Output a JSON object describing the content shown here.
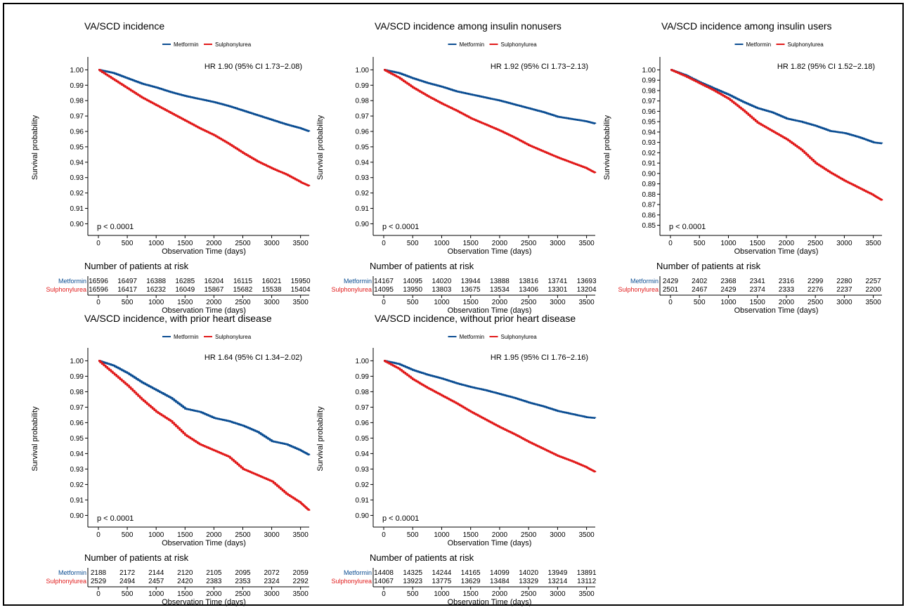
{
  "legend": {
    "metformin": "Metformin",
    "sulphonylurea": "Sulphonylurea"
  },
  "colors": {
    "metformin": "#0b4d92",
    "sulphonylurea": "#e11a1a"
  },
  "labels": {
    "ylabel": "Survival probability",
    "xlabel": "Observation Time (days)",
    "risk_title": "Number of patients at risk"
  },
  "chart_data": [
    {
      "type": "line",
      "title": "VA/SCD incidence",
      "hr": "HR 1.90 (95% CI 1.73−2.08)",
      "pvalue": "p < 0.0001",
      "xlabel": "Observation Time (days)",
      "ylabel": "Survival probability",
      "xlim": [
        0,
        3650
      ],
      "ylim": [
        0.897,
        1.002
      ],
      "yticks": [
        "0.90",
        "0.91",
        "0.92",
        "0.93",
        "0.94",
        "0.95",
        "0.96",
        "0.97",
        "0.98",
        "0.99",
        "1.00"
      ],
      "xticks": [
        "0",
        "500",
        "1000",
        "1500",
        "2000",
        "2500",
        "3000",
        "3500"
      ],
      "series": [
        {
          "name": "Metformin",
          "x": [
            0,
            250,
            500,
            750,
            1000,
            1250,
            1500,
            1750,
            2000,
            2250,
            2500,
            2750,
            3000,
            3250,
            3500,
            3650
          ],
          "y": [
            1.0,
            0.998,
            0.9945,
            0.991,
            0.9885,
            0.9855,
            0.983,
            0.981,
            0.979,
            0.9765,
            0.9735,
            0.9705,
            0.9675,
            0.9645,
            0.962,
            0.96
          ]
        },
        {
          "name": "Sulphonylurea",
          "x": [
            0,
            250,
            500,
            750,
            1000,
            1250,
            1500,
            1750,
            2000,
            2250,
            2500,
            2750,
            3000,
            3250,
            3500,
            3650
          ],
          "y": [
            1.0,
            0.994,
            0.988,
            0.982,
            0.977,
            0.972,
            0.967,
            0.962,
            0.9575,
            0.952,
            0.946,
            0.9405,
            0.936,
            0.932,
            0.927,
            0.9245
          ]
        }
      ],
      "risk_table": {
        "x": [
          0,
          500,
          1000,
          1500,
          2000,
          2500,
          3000,
          3500
        ],
        "Metformin": [
          "16596",
          "16497",
          "16388",
          "16285",
          "16204",
          "16115",
          "16021",
          "15950"
        ],
        "Sulphonylurea": [
          "16596",
          "16417",
          "16232",
          "16049",
          "15867",
          "15682",
          "15538",
          "15404"
        ]
      }
    },
    {
      "type": "line",
      "title": "VA/SCD incidence among insulin nonusers",
      "hr": "HR 1.92 (95% CI 1.73−2.13)",
      "pvalue": "p < 0.0001",
      "xlabel": "Observation Time (days)",
      "ylabel": "Survival probability",
      "xlim": [
        0,
        3650
      ],
      "ylim": [
        0.897,
        1.002
      ],
      "yticks": [
        "0.90",
        "0.91",
        "0.92",
        "0.93",
        "0.94",
        "0.95",
        "0.96",
        "0.97",
        "0.98",
        "0.99",
        "1.00"
      ],
      "xticks": [
        "0",
        "500",
        "1000",
        "1500",
        "2000",
        "2500",
        "3000",
        "3500"
      ],
      "series": [
        {
          "name": "Metformin",
          "x": [
            0,
            250,
            500,
            750,
            1000,
            1250,
            1500,
            1750,
            2000,
            2250,
            2500,
            2750,
            3000,
            3250,
            3500,
            3650
          ],
          "y": [
            1.0,
            0.998,
            0.9945,
            0.9915,
            0.989,
            0.986,
            0.984,
            0.982,
            0.98,
            0.9775,
            0.975,
            0.9725,
            0.9695,
            0.968,
            0.9665,
            0.965
          ]
        },
        {
          "name": "Sulphonylurea",
          "x": [
            0,
            250,
            500,
            750,
            1000,
            1250,
            1500,
            1750,
            2000,
            2250,
            2500,
            2750,
            3000,
            3250,
            3500,
            3650
          ],
          "y": [
            1.0,
            0.995,
            0.9885,
            0.983,
            0.978,
            0.9735,
            0.9685,
            0.9645,
            0.9605,
            0.956,
            0.951,
            0.947,
            0.943,
            0.9395,
            0.936,
            0.933
          ]
        }
      ],
      "risk_table": {
        "x": [
          0,
          500,
          1000,
          1500,
          2000,
          2500,
          3000,
          3500
        ],
        "Metformin": [
          "14167",
          "14095",
          "14020",
          "13944",
          "13888",
          "13816",
          "13741",
          "13693"
        ],
        "Sulphonylurea": [
          "14095",
          "13950",
          "13803",
          "13675",
          "13534",
          "13406",
          "13301",
          "13204"
        ]
      }
    },
    {
      "type": "line",
      "title": "VA/SCD incidence among insulin users",
      "hr": "HR 1.82 (95% CI 1.52−2.18)",
      "pvalue": "p < 0.0001",
      "xlabel": "Observation Time (days)",
      "ylabel": "Survival probability",
      "xlim": [
        0,
        3650
      ],
      "ylim": [
        0.847,
        1.003
      ],
      "yticks": [
        "0.85",
        "0.86",
        "0.87",
        "0.88",
        "0.89",
        "0.90",
        "0.91",
        "0.92",
        "0.93",
        "0.94",
        "0.95",
        "0.96",
        "0.97",
        "0.98",
        "0.99",
        "1.00"
      ],
      "xticks": [
        "0",
        "500",
        "1000",
        "1500",
        "2000",
        "2500",
        "3000",
        "3500"
      ],
      "series": [
        {
          "name": "Metformin",
          "x": [
            0,
            250,
            500,
            750,
            1000,
            1250,
            1500,
            1750,
            2000,
            2250,
            2500,
            2750,
            3000,
            3250,
            3500,
            3650
          ],
          "y": [
            1.0,
            0.995,
            0.988,
            0.982,
            0.976,
            0.969,
            0.963,
            0.959,
            0.953,
            0.95,
            0.946,
            0.941,
            0.939,
            0.935,
            0.93,
            0.929
          ]
        },
        {
          "name": "Sulphonylurea",
          "x": [
            0,
            250,
            500,
            750,
            1000,
            1250,
            1500,
            1750,
            2000,
            2250,
            2500,
            2750,
            3000,
            3250,
            3500,
            3650
          ],
          "y": [
            1.0,
            0.994,
            0.987,
            0.98,
            0.972,
            0.961,
            0.949,
            0.941,
            0.933,
            0.923,
            0.91,
            0.901,
            0.893,
            0.886,
            0.879,
            0.874
          ]
        }
      ],
      "risk_table": {
        "x": [
          0,
          500,
          1000,
          1500,
          2000,
          2500,
          3000,
          3500
        ],
        "Metformin": [
          "2429",
          "2402",
          "2368",
          "2341",
          "2316",
          "2299",
          "2280",
          "2257"
        ],
        "Sulphonylurea": [
          "2501",
          "2467",
          "2429",
          "2374",
          "2333",
          "2276",
          "2237",
          "2200"
        ]
      }
    },
    {
      "type": "line",
      "title": "VA/SCD incidence, with prior heart disease",
      "hr": "HR 1.64 (95% CI 1.34−2.02)",
      "pvalue": "p < 0.0001",
      "xlabel": "Observation Time (days)",
      "ylabel": "Survival probability",
      "xlim": [
        0,
        3650
      ],
      "ylim": [
        0.897,
        1.002
      ],
      "yticks": [
        "0.90",
        "0.91",
        "0.92",
        "0.93",
        "0.94",
        "0.95",
        "0.96",
        "0.97",
        "0.98",
        "0.99",
        "1.00"
      ],
      "xticks": [
        "0",
        "500",
        "1000",
        "1500",
        "2000",
        "2500",
        "3000",
        "3500"
      ],
      "series": [
        {
          "name": "Metformin",
          "x": [
            0,
            250,
            500,
            750,
            1000,
            1250,
            1500,
            1750,
            2000,
            2250,
            2500,
            2750,
            3000,
            3250,
            3500,
            3650
          ],
          "y": [
            1.0,
            0.997,
            0.992,
            0.986,
            0.981,
            0.976,
            0.969,
            0.967,
            0.963,
            0.961,
            0.958,
            0.954,
            0.948,
            0.946,
            0.942,
            0.939
          ]
        },
        {
          "name": "Sulphonylurea",
          "x": [
            0,
            250,
            500,
            750,
            1000,
            1250,
            1500,
            1750,
            2000,
            2250,
            2500,
            2750,
            3000,
            3250,
            3500,
            3650
          ],
          "y": [
            1.0,
            0.992,
            0.984,
            0.975,
            0.967,
            0.961,
            0.952,
            0.946,
            0.942,
            0.938,
            0.93,
            0.926,
            0.922,
            0.914,
            0.908,
            0.903
          ]
        }
      ],
      "risk_table": {
        "x": [
          0,
          500,
          1000,
          1500,
          2000,
          2500,
          3000,
          3500
        ],
        "Metformin": [
          "2188",
          "2172",
          "2144",
          "2120",
          "2105",
          "2095",
          "2072",
          "2059"
        ],
        "Sulphonylurea": [
          "2529",
          "2494",
          "2457",
          "2420",
          "2383",
          "2353",
          "2324",
          "2292"
        ]
      }
    },
    {
      "type": "line",
      "title": "VA/SCD incidence, without prior heart disease",
      "hr": "HR 1.95 (95% CI 1.76−2.16)",
      "pvalue": "p < 0.0001",
      "xlabel": "Observation Time (days)",
      "ylabel": "Survival probability",
      "xlim": [
        0,
        3650
      ],
      "ylim": [
        0.897,
        1.002
      ],
      "yticks": [
        "0.90",
        "0.91",
        "0.92",
        "0.93",
        "0.94",
        "0.95",
        "0.96",
        "0.97",
        "0.98",
        "0.99",
        "1.00"
      ],
      "xticks": [
        "0",
        "500",
        "1000",
        "1500",
        "2000",
        "2500",
        "3000",
        "3500"
      ],
      "series": [
        {
          "name": "Metformin",
          "x": [
            0,
            250,
            500,
            750,
            1000,
            1250,
            1500,
            1750,
            2000,
            2250,
            2500,
            2750,
            3000,
            3250,
            3500,
            3650
          ],
          "y": [
            1.0,
            0.998,
            0.994,
            0.991,
            0.9885,
            0.9855,
            0.983,
            0.981,
            0.9785,
            0.976,
            0.973,
            0.9705,
            0.9675,
            0.9655,
            0.9635,
            0.963
          ]
        },
        {
          "name": "Sulphonylurea",
          "x": [
            0,
            250,
            500,
            750,
            1000,
            1250,
            1500,
            1750,
            2000,
            2250,
            2500,
            2750,
            3000,
            3250,
            3500,
            3650
          ],
          "y": [
            1.0,
            0.995,
            0.988,
            0.9825,
            0.9775,
            0.9725,
            0.967,
            0.962,
            0.957,
            0.9525,
            0.9475,
            0.943,
            0.9385,
            0.935,
            0.931,
            0.928
          ]
        }
      ],
      "risk_table": {
        "x": [
          0,
          500,
          1000,
          1500,
          2000,
          2500,
          3000,
          3500
        ],
        "Metformin": [
          "14408",
          "14325",
          "14244",
          "14165",
          "14099",
          "14020",
          "13949",
          "13891"
        ],
        "Sulphonylurea": [
          "14067",
          "13923",
          "13775",
          "13629",
          "13484",
          "13329",
          "13214",
          "13112"
        ]
      }
    }
  ]
}
